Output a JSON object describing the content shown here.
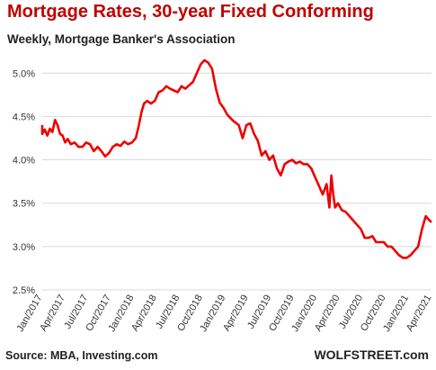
{
  "header": {
    "title": "Mortgage Rates, 30-year Fixed Conforming",
    "subtitle": "Weekly, Mortgage Banker's Association"
  },
  "footer": {
    "source": "Source: MBA, Investing.com",
    "brand": "WOLFSTREET.com"
  },
  "chart_data": {
    "type": "line",
    "title": "Mortgage Rates, 30-year Fixed Conforming",
    "subtitle": "Weekly, Mortgage Banker's Association",
    "xlabel": "",
    "ylabel": "",
    "y_ticks": [
      "2.5%",
      "3.0%",
      "3.5%",
      "4.0%",
      "4.5%",
      "5.0%"
    ],
    "y_tick_values": [
      2.5,
      3.0,
      3.5,
      4.0,
      4.5,
      5.0
    ],
    "ylim": [
      2.5,
      5.2
    ],
    "xlim": [
      "2017-01",
      "2021-04"
    ],
    "x_ticks": [
      "Jan/2017",
      "Apr/2017",
      "Jul/2017",
      "Oct/2017",
      "Jan/2018",
      "Apr/2018",
      "Jul/2018",
      "Oct/2018",
      "Jan/2019",
      "Apr/2019",
      "Jul/2019",
      "Oct/2019",
      "Jan/2020",
      "Apr/2020",
      "Jul/2020",
      "Oct/2020",
      "Jan/2021",
      "Apr/2021"
    ],
    "grid": true,
    "line_color": "#ee0000",
    "series": [
      {
        "name": "",
        "x": [
          "2017-01",
          "2017-01",
          "2017-01",
          "2017-02",
          "2017-02",
          "2017-02",
          "2017-03",
          "2017-03",
          "2017-03",
          "2017-04",
          "2017-04",
          "2017-04",
          "2017-05",
          "2017-05",
          "2017-06",
          "2017-06",
          "2017-07",
          "2017-07",
          "2017-08",
          "2017-08",
          "2017-09",
          "2017-09",
          "2017-10",
          "2017-10",
          "2017-11",
          "2017-11",
          "2017-12",
          "2017-12",
          "2018-01",
          "2018-01",
          "2018-02",
          "2018-02",
          "2018-02",
          "2018-03",
          "2018-03",
          "2018-04",
          "2018-04",
          "2018-05",
          "2018-05",
          "2018-06",
          "2018-06",
          "2018-07",
          "2018-07",
          "2018-08",
          "2018-08",
          "2018-09",
          "2018-09",
          "2018-10",
          "2018-10",
          "2018-11",
          "2018-11",
          "2018-12",
          "2018-12",
          "2019-01",
          "2019-01",
          "2019-02",
          "2019-03",
          "2019-03",
          "2019-04",
          "2019-04",
          "2019-05",
          "2019-05",
          "2019-06",
          "2019-06",
          "2019-07",
          "2019-07",
          "2019-08",
          "2019-08",
          "2019-09",
          "2019-09",
          "2019-10",
          "2019-10",
          "2019-11",
          "2019-11",
          "2019-12",
          "2019-12",
          "2020-01",
          "2020-01",
          "2020-02",
          "2020-02",
          "2020-03",
          "2020-03",
          "2020-03",
          "2020-03",
          "2020-04",
          "2020-04",
          "2020-05",
          "2020-05",
          "2020-06",
          "2020-06",
          "2020-07",
          "2020-07",
          "2020-08",
          "2020-08",
          "2020-09",
          "2020-09",
          "2020-10",
          "2020-10",
          "2020-11",
          "2020-11",
          "2020-12",
          "2020-12",
          "2021-01",
          "2021-01",
          "2021-02",
          "2021-02",
          "2021-03",
          "2021-03",
          "2021-04",
          "2021-04"
        ],
        "y": [
          4.4,
          4.3,
          4.35,
          4.28,
          4.36,
          4.32,
          4.46,
          4.4,
          4.3,
          4.28,
          4.2,
          4.24,
          4.18,
          4.2,
          4.15,
          4.15,
          4.2,
          4.18,
          4.1,
          4.15,
          4.1,
          4.04,
          4.08,
          4.15,
          4.18,
          4.16,
          4.21,
          4.18,
          4.2,
          4.25,
          4.4,
          4.55,
          4.65,
          4.68,
          4.65,
          4.68,
          4.78,
          4.8,
          4.85,
          4.82,
          4.8,
          4.78,
          4.85,
          4.82,
          4.86,
          4.9,
          5.0,
          5.1,
          5.15,
          5.12,
          5.05,
          4.82,
          4.66,
          4.6,
          4.52,
          4.45,
          4.4,
          4.25,
          4.4,
          4.42,
          4.3,
          4.22,
          4.05,
          4.1,
          4.0,
          4.05,
          3.9,
          3.82,
          3.95,
          3.98,
          4.0,
          3.96,
          3.98,
          3.95,
          3.95,
          3.9,
          3.8,
          3.7,
          3.6,
          3.72,
          3.45,
          3.82,
          3.6,
          3.45,
          3.5,
          3.42,
          3.4,
          3.35,
          3.3,
          3.25,
          3.2,
          3.1,
          3.1,
          3.12,
          3.05,
          3.05,
          3.05,
          3.0,
          3.0,
          2.95,
          2.9,
          2.87,
          2.87,
          2.9,
          2.95,
          3.0,
          3.2,
          3.35,
          3.3,
          3.28
        ]
      }
    ]
  }
}
